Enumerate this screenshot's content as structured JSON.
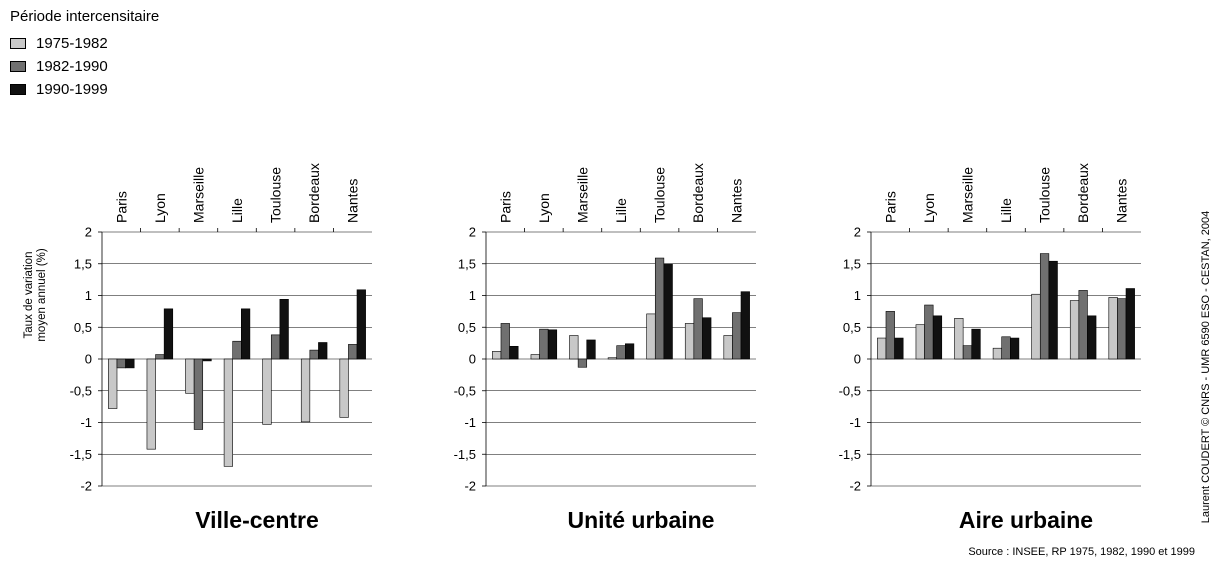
{
  "legend": {
    "title": "Période intercensitaire",
    "items": [
      {
        "label": "1975-1982",
        "color": "#c8c8c8"
      },
      {
        "label": "1982-1990",
        "color": "#707070"
      },
      {
        "label": "1990-1999",
        "color": "#111111"
      }
    ]
  },
  "ylabel_line1": "Taux de variation",
  "ylabel_line2": "moyen annuel (%)",
  "source": "Source : INSEE, RP 1975, 1982, 1990 et 1999",
  "credit": "Laurent COUDERT © CNRS - UMR 6590 ESO - CESTAN, 2004",
  "chart_data": [
    {
      "type": "bar",
      "title": "Ville-centre",
      "categories": [
        "Paris",
        "Lyon",
        "Marseille",
        "Lille",
        "Toulouse",
        "Bordeaux",
        "Nantes"
      ],
      "ylim": [
        -2,
        2
      ],
      "yticks": [
        "2",
        "1,5",
        "1",
        "0,5",
        "0",
        "-0,5",
        "-1",
        "-1,5",
        "-2"
      ],
      "series": [
        {
          "name": "1975-1982",
          "values": [
            -0.78,
            -1.42,
            -0.54,
            -1.69,
            -1.03,
            -0.99,
            -0.92
          ]
        },
        {
          "name": "1982-1990",
          "values": [
            -0.14,
            0.07,
            -1.11,
            0.28,
            0.38,
            0.14,
            0.23
          ]
        },
        {
          "name": "1990-1999",
          "values": [
            -0.14,
            0.79,
            -0.03,
            0.79,
            0.94,
            0.26,
            1.09
          ]
        }
      ]
    },
    {
      "type": "bar",
      "title": "Unité urbaine",
      "categories": [
        "Paris",
        "Lyon",
        "Marseille",
        "Lille",
        "Toulouse",
        "Bordeaux",
        "Nantes"
      ],
      "ylim": [
        -2,
        2
      ],
      "yticks": [
        "2",
        "1,5",
        "1",
        "0,5",
        "0",
        "-0,5",
        "-1",
        "-1,5",
        "-2"
      ],
      "series": [
        {
          "name": "1975-1982",
          "values": [
            0.12,
            0.07,
            0.37,
            0.02,
            0.71,
            0.56,
            0.37
          ]
        },
        {
          "name": "1982-1990",
          "values": [
            0.56,
            0.47,
            -0.13,
            0.21,
            1.59,
            0.95,
            0.73
          ]
        },
        {
          "name": "1990-1999",
          "values": [
            0.2,
            0.46,
            0.3,
            0.24,
            1.5,
            0.65,
            1.06
          ]
        }
      ]
    },
    {
      "type": "bar",
      "title": "Aire urbaine",
      "categories": [
        "Paris",
        "Lyon",
        "Marseille",
        "Lille",
        "Toulouse",
        "Bordeaux",
        "Nantes"
      ],
      "ylim": [
        -2,
        2
      ],
      "yticks": [
        "2",
        "1,5",
        "1",
        "0,5",
        "0",
        "-0,5",
        "-1",
        "-1,5",
        "-2"
      ],
      "series": [
        {
          "name": "1975-1982",
          "values": [
            0.33,
            0.54,
            0.64,
            0.17,
            1.02,
            0.92,
            0.97
          ]
        },
        {
          "name": "1982-1990",
          "values": [
            0.75,
            0.85,
            0.21,
            0.35,
            1.66,
            1.08,
            0.95
          ]
        },
        {
          "name": "1990-1999",
          "values": [
            0.33,
            0.68,
            0.47,
            0.33,
            1.54,
            0.68,
            1.11
          ]
        }
      ]
    }
  ]
}
